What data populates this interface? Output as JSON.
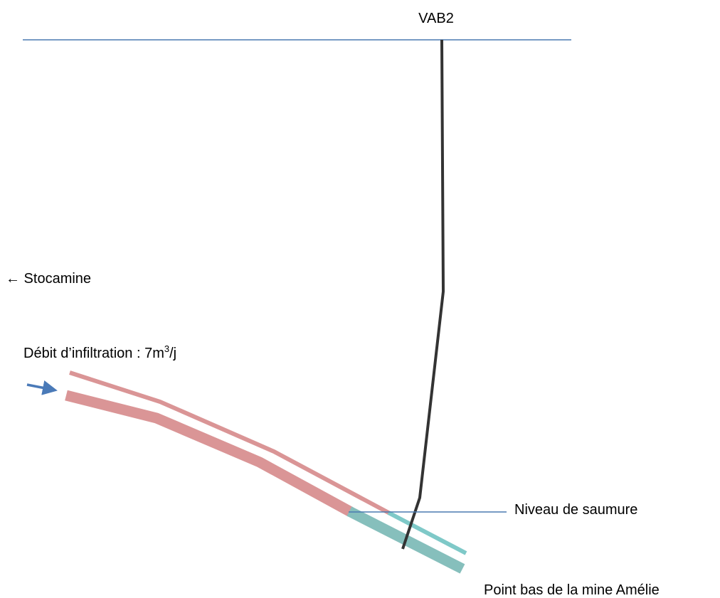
{
  "labels": {
    "shaft": "VAB2",
    "direction": "← Stocamine",
    "flow": {
      "text": "Débit d’infiltration : 7m",
      "superscript": "3",
      "suffix": "/j"
    },
    "brine_level": "Niveau de saumure",
    "low_point": "Point bas de la mine Amélie"
  }
}
